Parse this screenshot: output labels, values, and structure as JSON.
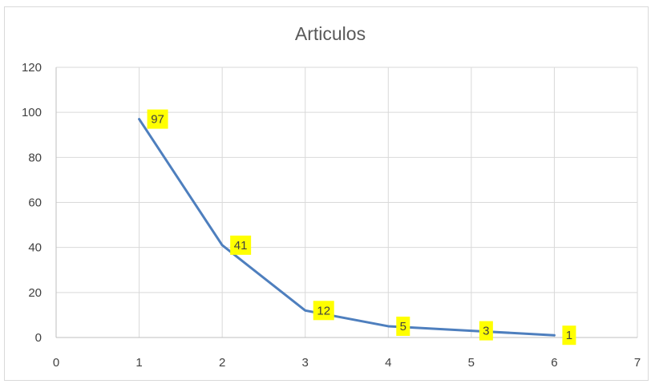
{
  "chart_data": {
    "type": "line",
    "title": "Articulos",
    "xlabel": "",
    "ylabel": "",
    "xlim": [
      0,
      7
    ],
    "ylim": [
      0,
      120
    ],
    "x_ticks": [
      0,
      1,
      2,
      3,
      4,
      5,
      6,
      7
    ],
    "y_ticks": [
      0,
      20,
      40,
      60,
      80,
      100,
      120
    ],
    "grid": true,
    "legend": "none",
    "series": [
      {
        "x": [
          1,
          2,
          3,
          4,
          5,
          6
        ],
        "values": [
          97,
          41,
          12,
          5,
          3,
          1
        ],
        "data_labels": [
          "97",
          "41",
          "12",
          "5",
          "3",
          "1"
        ],
        "color": "#4e7fbe",
        "label_background": "#ffff00"
      }
    ]
  }
}
